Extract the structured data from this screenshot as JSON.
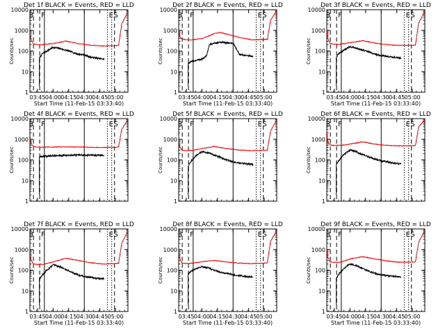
{
  "chart_data": [
    {
      "type": "line",
      "title": "Det 1f BLACK = Events, RED = LLD",
      "ylabel": "Counts/sec",
      "xlabel": "Start Time (11-Feb-15 03:33:40)",
      "yscale": "log",
      "ylim": [
        1,
        10000
      ],
      "xlim": [
        3.6278,
        5.2
      ],
      "x_ticks": [
        "03:45",
        "04:00",
        "04:15",
        "04:30",
        "04:45",
        "05:00"
      ],
      "x_tick_values": [
        3.75,
        4.0,
        4.25,
        4.5,
        4.75,
        5.0
      ],
      "y_ticks": [
        "1",
        "10",
        "100",
        "1000",
        "10000"
      ],
      "y_tick_values": [
        1,
        10,
        100,
        1000,
        10000
      ],
      "markers": {
        "B": "B",
        "F": "F",
        "E": "E",
        "S": "S"
      },
      "series": [
        {
          "color": "#000000",
          "x": [
            3.78,
            3.83,
            3.9,
            4.0,
            4.1,
            4.2,
            4.3,
            4.4,
            4.5,
            4.6,
            4.7,
            4.82
          ],
          "y": [
            45,
            75,
            100,
            150,
            135,
            110,
            90,
            70,
            65,
            50,
            45,
            40
          ]
        },
        {
          "color": "#ff0000",
          "x": [
            3.63,
            3.64,
            3.68,
            3.75,
            3.85,
            4.0,
            4.2,
            4.4,
            4.6,
            4.8,
            5.0,
            5.05,
            5.1,
            5.2
          ],
          "y": [
            900,
            400,
            220,
            200,
            205,
            230,
            300,
            230,
            190,
            175,
            180,
            185,
            2000,
            8000
          ]
        }
      ]
    },
    {
      "type": "line",
      "title": "Det 2f BLACK = Events, RED = LLD",
      "ylabel": "Counts/sec",
      "xlabel": "Start Time (11-Feb-15 03:33:40)",
      "yscale": "log",
      "ylim": [
        1,
        10000
      ],
      "xlim": [
        3.6278,
        5.2
      ],
      "x_ticks": [
        "03:45",
        "04:00",
        "04:15",
        "04:30",
        "04:45",
        "05:00"
      ],
      "x_tick_values": [
        3.75,
        4.0,
        4.25,
        4.5,
        4.75,
        5.0
      ],
      "y_ticks": [
        "1",
        "10",
        "100",
        "1000",
        "10000"
      ],
      "y_tick_values": [
        1,
        10,
        100,
        1000,
        10000
      ],
      "markers": {
        "B": "B",
        "F": "F",
        "E": "E",
        "S": "S"
      },
      "series": [
        {
          "color": "#000000",
          "x": [
            3.78,
            3.83,
            3.9,
            4.0,
            4.07,
            4.12,
            4.2,
            4.3,
            4.4,
            4.5,
            4.6,
            4.7,
            4.82
          ],
          "y": [
            25,
            30,
            35,
            40,
            55,
            200,
            240,
            260,
            250,
            240,
            70,
            60,
            55
          ]
        },
        {
          "color": "#ff0000",
          "x": [
            3.63,
            3.64,
            3.68,
            3.75,
            3.85,
            4.0,
            4.2,
            4.3,
            4.4,
            4.6,
            4.8,
            5.0,
            5.05,
            5.1,
            5.2
          ],
          "y": [
            1500,
            500,
            380,
            350,
            350,
            400,
            700,
            800,
            650,
            450,
            350,
            360,
            370,
            3000,
            9000
          ]
        }
      ]
    },
    {
      "type": "line",
      "title": "Det 3f BLACK = Events, RED = LLD",
      "ylabel": "Counts/sec",
      "xlabel": "Start Time (11-Feb-15 03:33:40)",
      "yscale": "log",
      "ylim": [
        1,
        10000
      ],
      "xlim": [
        3.6278,
        5.2
      ],
      "x_ticks": [
        "03:45",
        "04:00",
        "04:15",
        "04:30",
        "04:45",
        "05:00"
      ],
      "x_tick_values": [
        3.75,
        4.0,
        4.25,
        4.5,
        4.75,
        5.0
      ],
      "y_ticks": [
        "1",
        "10",
        "100",
        "1000",
        "10000"
      ],
      "y_tick_values": [
        1,
        10,
        100,
        1000,
        10000
      ],
      "markers": {
        "B": "B",
        "F": "F",
        "E": "E",
        "S": "S"
      },
      "series": [
        {
          "color": "#000000",
          "x": [
            3.78,
            3.83,
            3.9,
            4.0,
            4.1,
            4.2,
            4.3,
            4.4,
            4.5,
            4.6,
            4.7,
            4.82
          ],
          "y": [
            50,
            80,
            110,
            160,
            140,
            110,
            90,
            70,
            60,
            55,
            50,
            45
          ]
        },
        {
          "color": "#ff0000",
          "x": [
            3.63,
            3.64,
            3.68,
            3.75,
            3.85,
            4.0,
            4.2,
            4.4,
            4.6,
            4.8,
            5.0,
            5.05,
            5.1,
            5.2
          ],
          "y": [
            1000,
            450,
            230,
            210,
            215,
            250,
            320,
            240,
            200,
            185,
            190,
            195,
            2200,
            8500
          ]
        }
      ]
    },
    {
      "type": "line",
      "title": "Det 4f BLACK = Events, RED = LLD",
      "ylabel": "Counts/sec",
      "xlabel": "",
      "yscale": "log",
      "ylim": [
        1,
        10000
      ],
      "xlim": [
        3.6278,
        5.2
      ],
      "x_ticks": [],
      "x_tick_values": [],
      "y_ticks": [
        "1",
        "10",
        "100",
        "1000",
        "10000"
      ],
      "y_tick_values": [
        1,
        10,
        100,
        1000,
        10000
      ],
      "markers": {
        "B": "B",
        "F": "F",
        "E": "E",
        "S": "S"
      },
      "series": [
        {
          "color": "#000000",
          "x": [
            3.78,
            3.85,
            4.0,
            4.2,
            4.4,
            4.6,
            4.82
          ],
          "y": [
            140,
            150,
            160,
            165,
            170,
            170,
            165
          ]
        },
        {
          "color": "#ff0000",
          "x": [
            3.63,
            3.64,
            3.68,
            3.75,
            3.85,
            4.0,
            4.2,
            4.4,
            4.6,
            4.8,
            5.0,
            5.05,
            5.1,
            5.2
          ],
          "y": [
            1500,
            700,
            450,
            420,
            410,
            420,
            430,
            420,
            410,
            400,
            410,
            420,
            3000,
            9000
          ]
        }
      ]
    },
    {
      "type": "line",
      "title": "Det 5f BLACK = Events, RED = LLD",
      "ylabel": "Counts/sec",
      "xlabel": "",
      "yscale": "log",
      "ylim": [
        1,
        10000
      ],
      "xlim": [
        3.6278,
        5.2
      ],
      "x_ticks": [],
      "x_tick_values": [],
      "y_ticks": [
        "1",
        "10",
        "100",
        "1000",
        "10000"
      ],
      "y_tick_values": [
        1,
        10,
        100,
        1000,
        10000
      ],
      "markers": {
        "B": "B",
        "F": "F",
        "E": "E",
        "S": "S"
      },
      "series": [
        {
          "color": "#000000",
          "x": [
            3.78,
            3.83,
            3.9,
            4.0,
            4.1,
            4.2,
            4.3,
            4.4,
            4.5,
            4.6,
            4.7,
            4.82
          ],
          "y": [
            50,
            90,
            150,
            250,
            220,
            170,
            130,
            100,
            80,
            70,
            65,
            60
          ]
        },
        {
          "color": "#ff0000",
          "x": [
            3.63,
            3.64,
            3.68,
            3.75,
            3.85,
            4.0,
            4.2,
            4.4,
            4.6,
            4.8,
            5.0,
            5.05,
            5.1,
            5.2
          ],
          "y": [
            1000,
            450,
            300,
            280,
            290,
            350,
            450,
            350,
            300,
            280,
            290,
            300,
            2500,
            8500
          ]
        }
      ]
    },
    {
      "type": "line",
      "title": "Det 6f BLACK = Events, RED = LLD",
      "ylabel": "Counts/sec",
      "xlabel": "",
      "yscale": "log",
      "ylim": [
        1,
        10000
      ],
      "xlim": [
        3.6278,
        5.2
      ],
      "x_ticks": [],
      "x_tick_values": [],
      "y_ticks": [
        "1",
        "10",
        "100",
        "1000",
        "10000"
      ],
      "y_tick_values": [
        1,
        10,
        100,
        1000,
        10000
      ],
      "markers": {
        "B": "B",
        "F": "F",
        "E": "E",
        "S": "S"
      },
      "series": [
        {
          "color": "#000000",
          "x": [
            3.78,
            3.83,
            3.9,
            4.0,
            4.1,
            4.2,
            4.3,
            4.4,
            4.5,
            4.6,
            4.7,
            4.82
          ],
          "y": [
            60,
            100,
            180,
            300,
            250,
            180,
            140,
            110,
            90,
            80,
            70,
            65
          ]
        },
        {
          "color": "#ff0000",
          "x": [
            3.63,
            3.64,
            3.68,
            3.75,
            3.85,
            4.0,
            4.2,
            4.4,
            4.6,
            4.8,
            5.0,
            5.05,
            5.1,
            5.2
          ],
          "y": [
            2500,
            800,
            520,
            500,
            510,
            580,
            750,
            580,
            500,
            480,
            490,
            500,
            4000,
            9000
          ]
        }
      ]
    },
    {
      "type": "line",
      "title": "Det 7f BLACK = Events, RED = LLD",
      "ylabel": "Counts/sec",
      "xlabel": "Start Time (11-Feb-15 03:33:40)",
      "yscale": "log",
      "ylim": [
        1,
        10000
      ],
      "xlim": [
        3.6278,
        5.2
      ],
      "x_ticks": [
        "03:45",
        "04:00",
        "04:15",
        "04:30",
        "04:45",
        "05:00"
      ],
      "x_tick_values": [
        3.75,
        4.0,
        4.25,
        4.5,
        4.75,
        5.0
      ],
      "y_ticks": [
        "1",
        "10",
        "100",
        "1000",
        "10000"
      ],
      "y_tick_values": [
        1,
        10,
        100,
        1000,
        10000
      ],
      "markers": {
        "B": "B",
        "F": "F",
        "E": "E",
        "S": "S"
      },
      "series": [
        {
          "color": "#000000",
          "x": [
            3.78,
            3.83,
            3.9,
            4.0,
            4.1,
            4.2,
            4.3,
            4.4,
            4.5,
            4.6,
            4.7,
            4.82
          ],
          "y": [
            40,
            60,
            100,
            180,
            150,
            110,
            80,
            60,
            50,
            45,
            40,
            38
          ]
        },
        {
          "color": "#ff0000",
          "x": [
            3.63,
            3.64,
            3.68,
            3.75,
            3.85,
            4.0,
            4.2,
            4.4,
            4.6,
            4.8,
            5.0,
            5.05,
            5.1,
            5.2
          ],
          "y": [
            900,
            350,
            200,
            190,
            195,
            250,
            380,
            300,
            230,
            200,
            210,
            220,
            2000,
            8000
          ]
        }
      ]
    },
    {
      "type": "line",
      "title": "Det 8f BLACK = Events, RED = LLD",
      "ylabel": "Counts/sec",
      "xlabel": "Start Time (11-Feb-15 03:33:40)",
      "yscale": "log",
      "ylim": [
        1,
        10000
      ],
      "xlim": [
        3.6278,
        5.2
      ],
      "x_ticks": [
        "03:45",
        "04:00",
        "04:15",
        "04:30",
        "04:45",
        "05:00"
      ],
      "x_tick_values": [
        3.75,
        4.0,
        4.25,
        4.5,
        4.75,
        5.0
      ],
      "y_ticks": [
        "1",
        "10",
        "100",
        "1000",
        "10000"
      ],
      "y_tick_values": [
        1,
        10,
        100,
        1000,
        10000
      ],
      "markers": {
        "B": "B",
        "F": "F",
        "E": "E",
        "S": "S"
      },
      "series": [
        {
          "color": "#000000",
          "x": [
            3.78,
            3.83,
            3.9,
            4.0,
            4.1,
            4.2,
            4.3,
            4.4,
            4.5,
            4.6,
            4.7,
            4.82
          ],
          "y": [
            70,
            90,
            120,
            150,
            130,
            100,
            80,
            70,
            60,
            55,
            50,
            48
          ]
        },
        {
          "color": "#ff0000",
          "x": [
            3.63,
            3.64,
            3.68,
            3.75,
            3.85,
            4.0,
            4.2,
            4.4,
            4.6,
            4.8,
            5.0,
            5.05,
            5.1,
            5.2
          ],
          "y": [
            1000,
            400,
            220,
            210,
            220,
            260,
            300,
            250,
            220,
            210,
            220,
            230,
            2500,
            8500
          ]
        }
      ]
    },
    {
      "type": "line",
      "title": "Det 9f BLACK = Events, RED = LLD",
      "ylabel": "Counts/sec",
      "xlabel": "Start Time (11-Feb-15 03:33:40)",
      "yscale": "log",
      "ylim": [
        1,
        10000
      ],
      "xlim": [
        3.6278,
        5.2
      ],
      "x_ticks": [
        "03:45",
        "04:00",
        "04:15",
        "04:30",
        "04:45",
        "05:00"
      ],
      "x_tick_values": [
        3.75,
        4.0,
        4.25,
        4.5,
        4.75,
        5.0
      ],
      "y_ticks": [
        "1",
        "10",
        "100",
        "1000",
        "10000"
      ],
      "y_tick_values": [
        1,
        10,
        100,
        1000,
        10000
      ],
      "markers": {
        "B": "B",
        "F": "F",
        "E": "E",
        "S": "S"
      },
      "series": [
        {
          "color": "#000000",
          "x": [
            3.78,
            3.83,
            3.9,
            4.0,
            4.1,
            4.2,
            4.3,
            4.4,
            4.5,
            4.6,
            4.7,
            4.82
          ],
          "y": [
            40,
            70,
            120,
            200,
            170,
            120,
            90,
            70,
            60,
            55,
            50,
            45
          ]
        },
        {
          "color": "#ff0000",
          "x": [
            3.63,
            3.64,
            3.68,
            3.75,
            3.85,
            4.0,
            4.2,
            4.4,
            4.6,
            4.8,
            5.0,
            5.05,
            5.1,
            5.2
          ],
          "y": [
            1000,
            450,
            250,
            240,
            250,
            350,
            450,
            350,
            280,
            240,
            250,
            260,
            2200,
            8500
          ]
        }
      ]
    }
  ]
}
